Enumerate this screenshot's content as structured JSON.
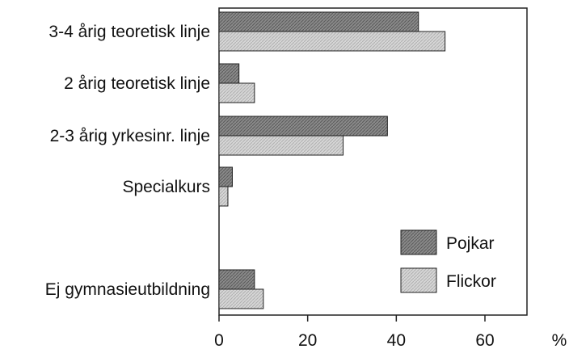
{
  "chart_data": {
    "type": "bar",
    "orientation": "horizontal",
    "categories": [
      "3-4 årig teoretisk linje",
      "2 årig teoretisk linje",
      "2-3 årig yrkesinr. linje",
      "Specialkurs",
      "Ej gymnasieutbildning"
    ],
    "series": [
      {
        "name": "Pojkar",
        "values": [
          45,
          4.5,
          38,
          3,
          8
        ],
        "color": "#7a7a7a"
      },
      {
        "name": "Flickor",
        "values": [
          51,
          8,
          28,
          2,
          10
        ],
        "color": "#c8c8c8"
      }
    ],
    "xlim": [
      0,
      70
    ],
    "xticks": [
      0,
      20,
      40,
      60
    ],
    "xunit": "%",
    "grid": false,
    "legend_position": "bottom-right"
  }
}
